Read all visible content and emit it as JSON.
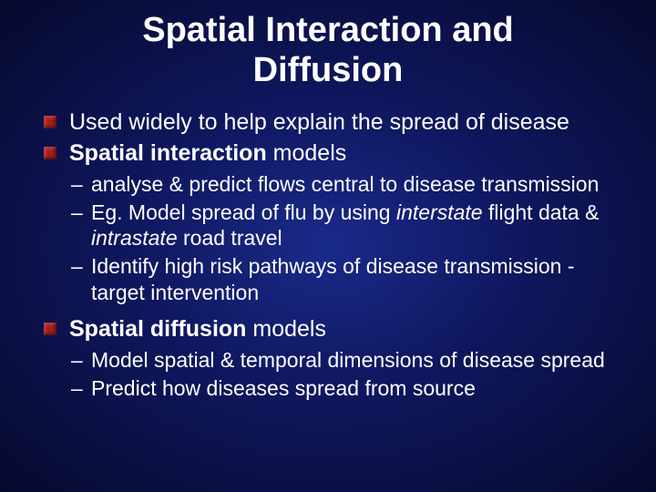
{
  "colors": {
    "bg_center": "#1a2a8a",
    "bg_mid": "#0f1860",
    "bg_edge": "#06092d",
    "text": "#ffffff",
    "bullet": "#a02020"
  },
  "typography": {
    "title_fontsize": 38,
    "level1_fontsize": 25,
    "level2_fontsize": 23,
    "font_family": "Arial"
  },
  "title_line1": "Spatial Interaction and",
  "title_line2": "Diffusion",
  "l1_a": "Used widely to help explain the spread of disease",
  "l1_b_strong": "Spatial interaction",
  "l1_b_rest": " models",
  "l2_b1": "analyse & predict flows central to disease transmission",
  "l2_b2_a": "Eg. Model spread of flu by using ",
  "l2_b2_b": "interstate",
  "l2_b2_c": " flight data & ",
  "l2_b2_d": "intrastate",
  "l2_b2_e": " road travel",
  "l2_b3": "Identify high risk pathways of disease transmission - target intervention",
  "l1_c_strong": "Spatial diffusion",
  "l1_c_rest": " models",
  "l2_c1": "Model spatial & temporal dimensions of disease spread",
  "l2_c2": "Predict how diseases spread from source"
}
